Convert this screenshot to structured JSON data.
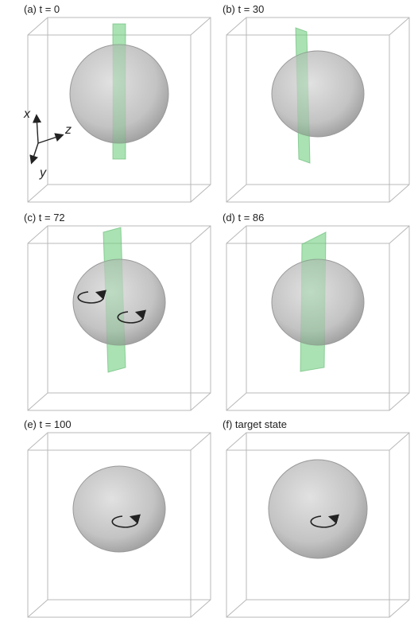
{
  "panels": [
    {
      "label": "(a) t = 0"
    },
    {
      "label": "(b) t = 30"
    },
    {
      "label": "(c) t = 72"
    },
    {
      "label": "(d) t = 86"
    },
    {
      "label": "(e) t = 100"
    },
    {
      "label": "(f) target state"
    }
  ],
  "axes": {
    "x": "x",
    "z": "z",
    "y": "y"
  }
}
